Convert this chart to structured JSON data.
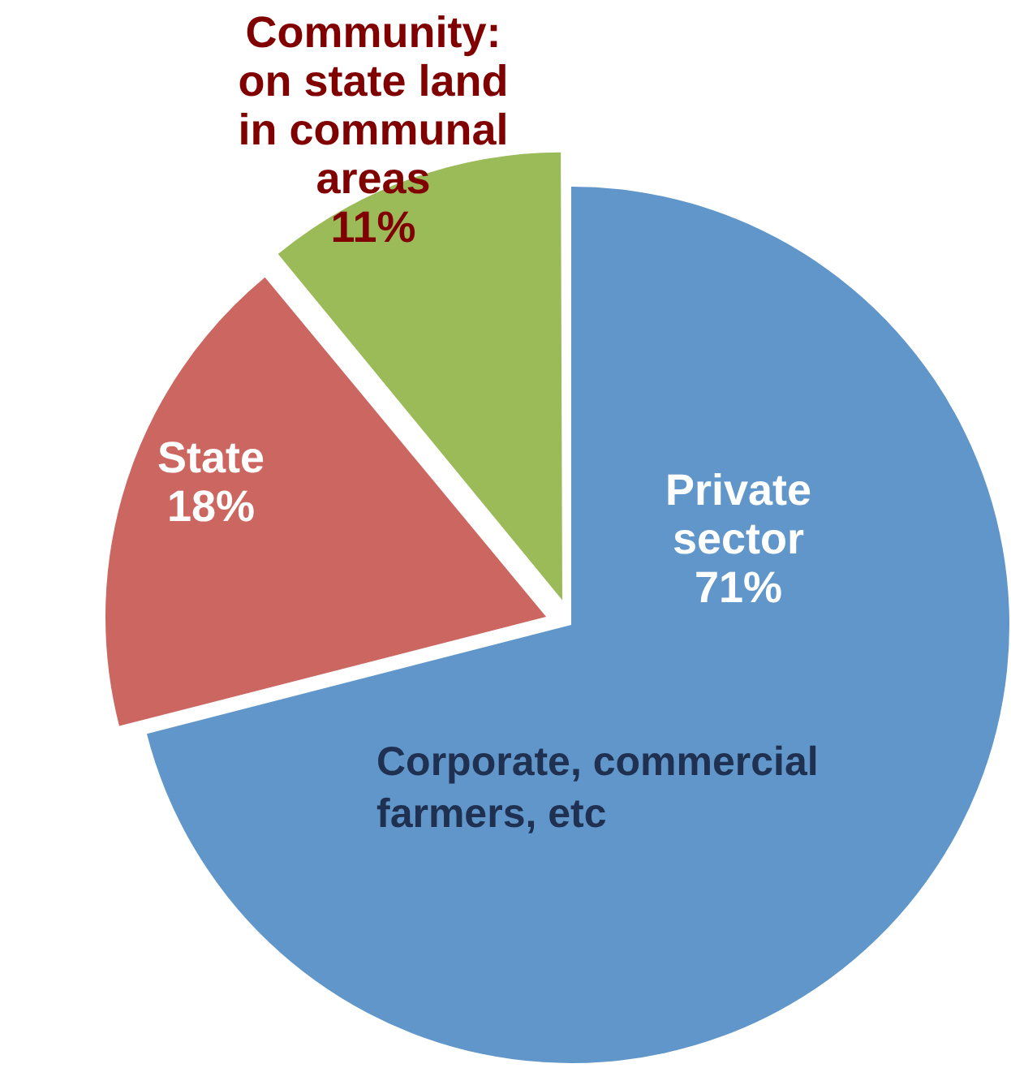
{
  "chart_data": {
    "type": "pie",
    "categories": [
      "Private sector",
      "State",
      "Community: on state land in communal areas"
    ],
    "values": [
      71,
      18,
      11
    ],
    "value_labels": [
      "71%",
      "18%",
      "11%"
    ],
    "colors": [
      "#6096c9",
      "#cc6660",
      "#9bbb59"
    ],
    "annotations": [
      "Corporate, commercial farmers, etc"
    ],
    "legend": false
  }
}
